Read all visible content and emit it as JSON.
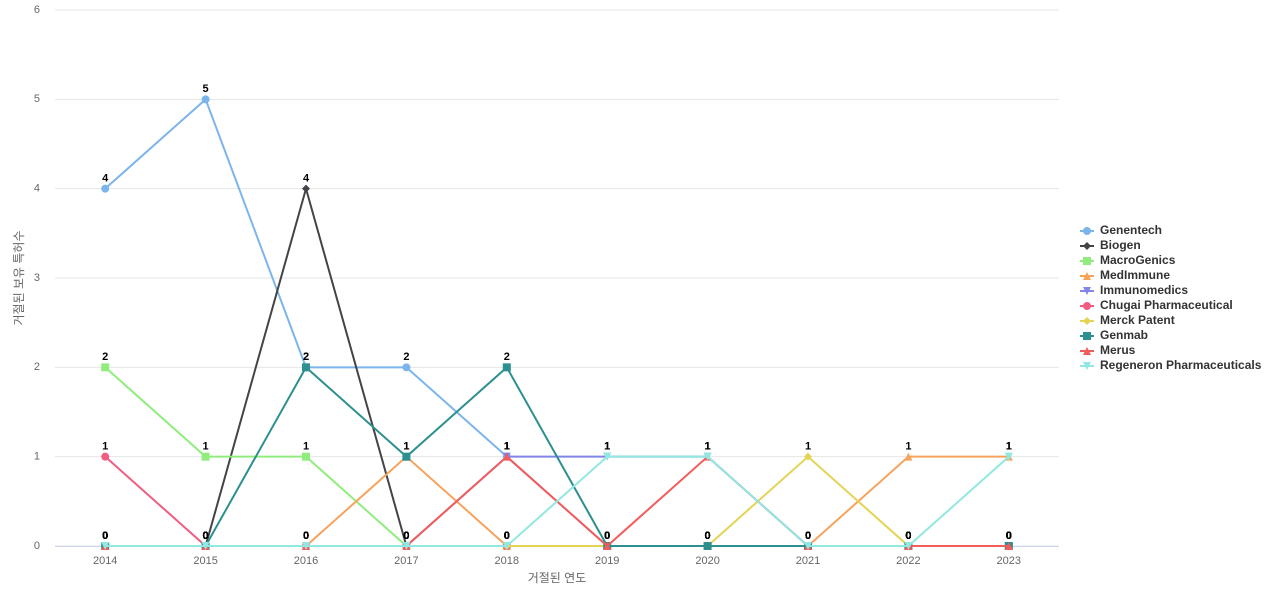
{
  "chart_data": {
    "type": "line",
    "x_label": "거절된 연도",
    "y_label": "거절된 보유 특허수",
    "categories": [
      "2014",
      "2015",
      "2016",
      "2017",
      "2018",
      "2019",
      "2020",
      "2021",
      "2022",
      "2023"
    ],
    "ylim": [
      0,
      6
    ],
    "yticks": [
      0,
      1,
      2,
      3,
      4,
      5,
      6
    ],
    "grid": true,
    "legend": "right",
    "series": [
      {
        "name": "Genentech",
        "color": "#7cb5ec",
        "marker": "circle",
        "values": [
          4,
          5,
          2,
          2,
          1,
          0,
          0,
          0,
          0,
          0
        ]
      },
      {
        "name": "Biogen",
        "color": "#434348",
        "marker": "diamond",
        "values": [
          0,
          0,
          4,
          0,
          0,
          0,
          0,
          0,
          0,
          0
        ]
      },
      {
        "name": "MacroGenics",
        "color": "#90ed7d",
        "marker": "square",
        "values": [
          2,
          1,
          1,
          0,
          0,
          0,
          0,
          0,
          0,
          0
        ]
      },
      {
        "name": "MedImmune",
        "color": "#f7a35c",
        "marker": "triangle",
        "values": [
          0,
          0,
          0,
          1,
          0,
          0,
          0,
          0,
          1,
          1
        ]
      },
      {
        "name": "Immunomedics",
        "color": "#8085e9",
        "marker": "triangle-down",
        "values": [
          0,
          0,
          0,
          0,
          1,
          1,
          1,
          0,
          0,
          0
        ]
      },
      {
        "name": "Chugai Pharmaceutical",
        "color": "#f15c80",
        "marker": "circle",
        "values": [
          1,
          0,
          0,
          0,
          0,
          0,
          0,
          0,
          0,
          0
        ]
      },
      {
        "name": "Merck Patent",
        "color": "#e4d354",
        "marker": "diamond",
        "values": [
          0,
          0,
          0,
          0,
          0,
          0,
          0,
          1,
          0,
          0
        ]
      },
      {
        "name": "Genmab",
        "color": "#2b908f",
        "marker": "square",
        "values": [
          0,
          0,
          2,
          1,
          2,
          0,
          0,
          0,
          0,
          0
        ]
      },
      {
        "name": "Merus",
        "color": "#f45b5b",
        "marker": "triangle",
        "values": [
          0,
          0,
          0,
          0,
          1,
          0,
          1,
          0,
          0,
          0
        ]
      },
      {
        "name": "Regeneron Pharmaceuticals",
        "color": "#91e8e1",
        "marker": "triangle-down",
        "values": [
          0,
          0,
          0,
          0,
          0,
          1,
          1,
          0,
          0,
          1
        ]
      }
    ]
  }
}
